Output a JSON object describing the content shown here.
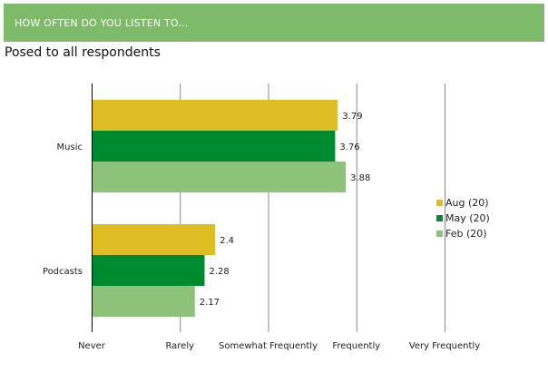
{
  "header": {
    "title": "HOW OFTEN DO YOU LISTEN TO..."
  },
  "subtitle": "Posed to all respondents",
  "chart_data": {
    "type": "bar",
    "orientation": "horizontal",
    "categories": [
      "Music",
      "Podcasts"
    ],
    "series": [
      {
        "name": "Aug (20)",
        "color": "#dfbd25",
        "values": [
          3.79,
          2.4
        ],
        "labels": [
          "3.79",
          "2.4"
        ]
      },
      {
        "name": "May (20)",
        "color": "#008a30",
        "values": [
          3.76,
          2.28
        ],
        "labels": [
          "3.76",
          "2.28"
        ]
      },
      {
        "name": "Feb (20)",
        "color": "#8cc27a",
        "values": [
          3.88,
          2.17
        ],
        "labels": [
          "3.88",
          "2.17"
        ]
      }
    ],
    "xlim": [
      1,
      5
    ],
    "x_ticks": [
      1,
      2,
      3,
      4,
      5
    ],
    "x_tick_labels": [
      "Never",
      "Rarely",
      "Somewhat Frequently",
      "Frequently",
      "Very Frequently"
    ],
    "grid": true,
    "legend_position": "right"
  }
}
